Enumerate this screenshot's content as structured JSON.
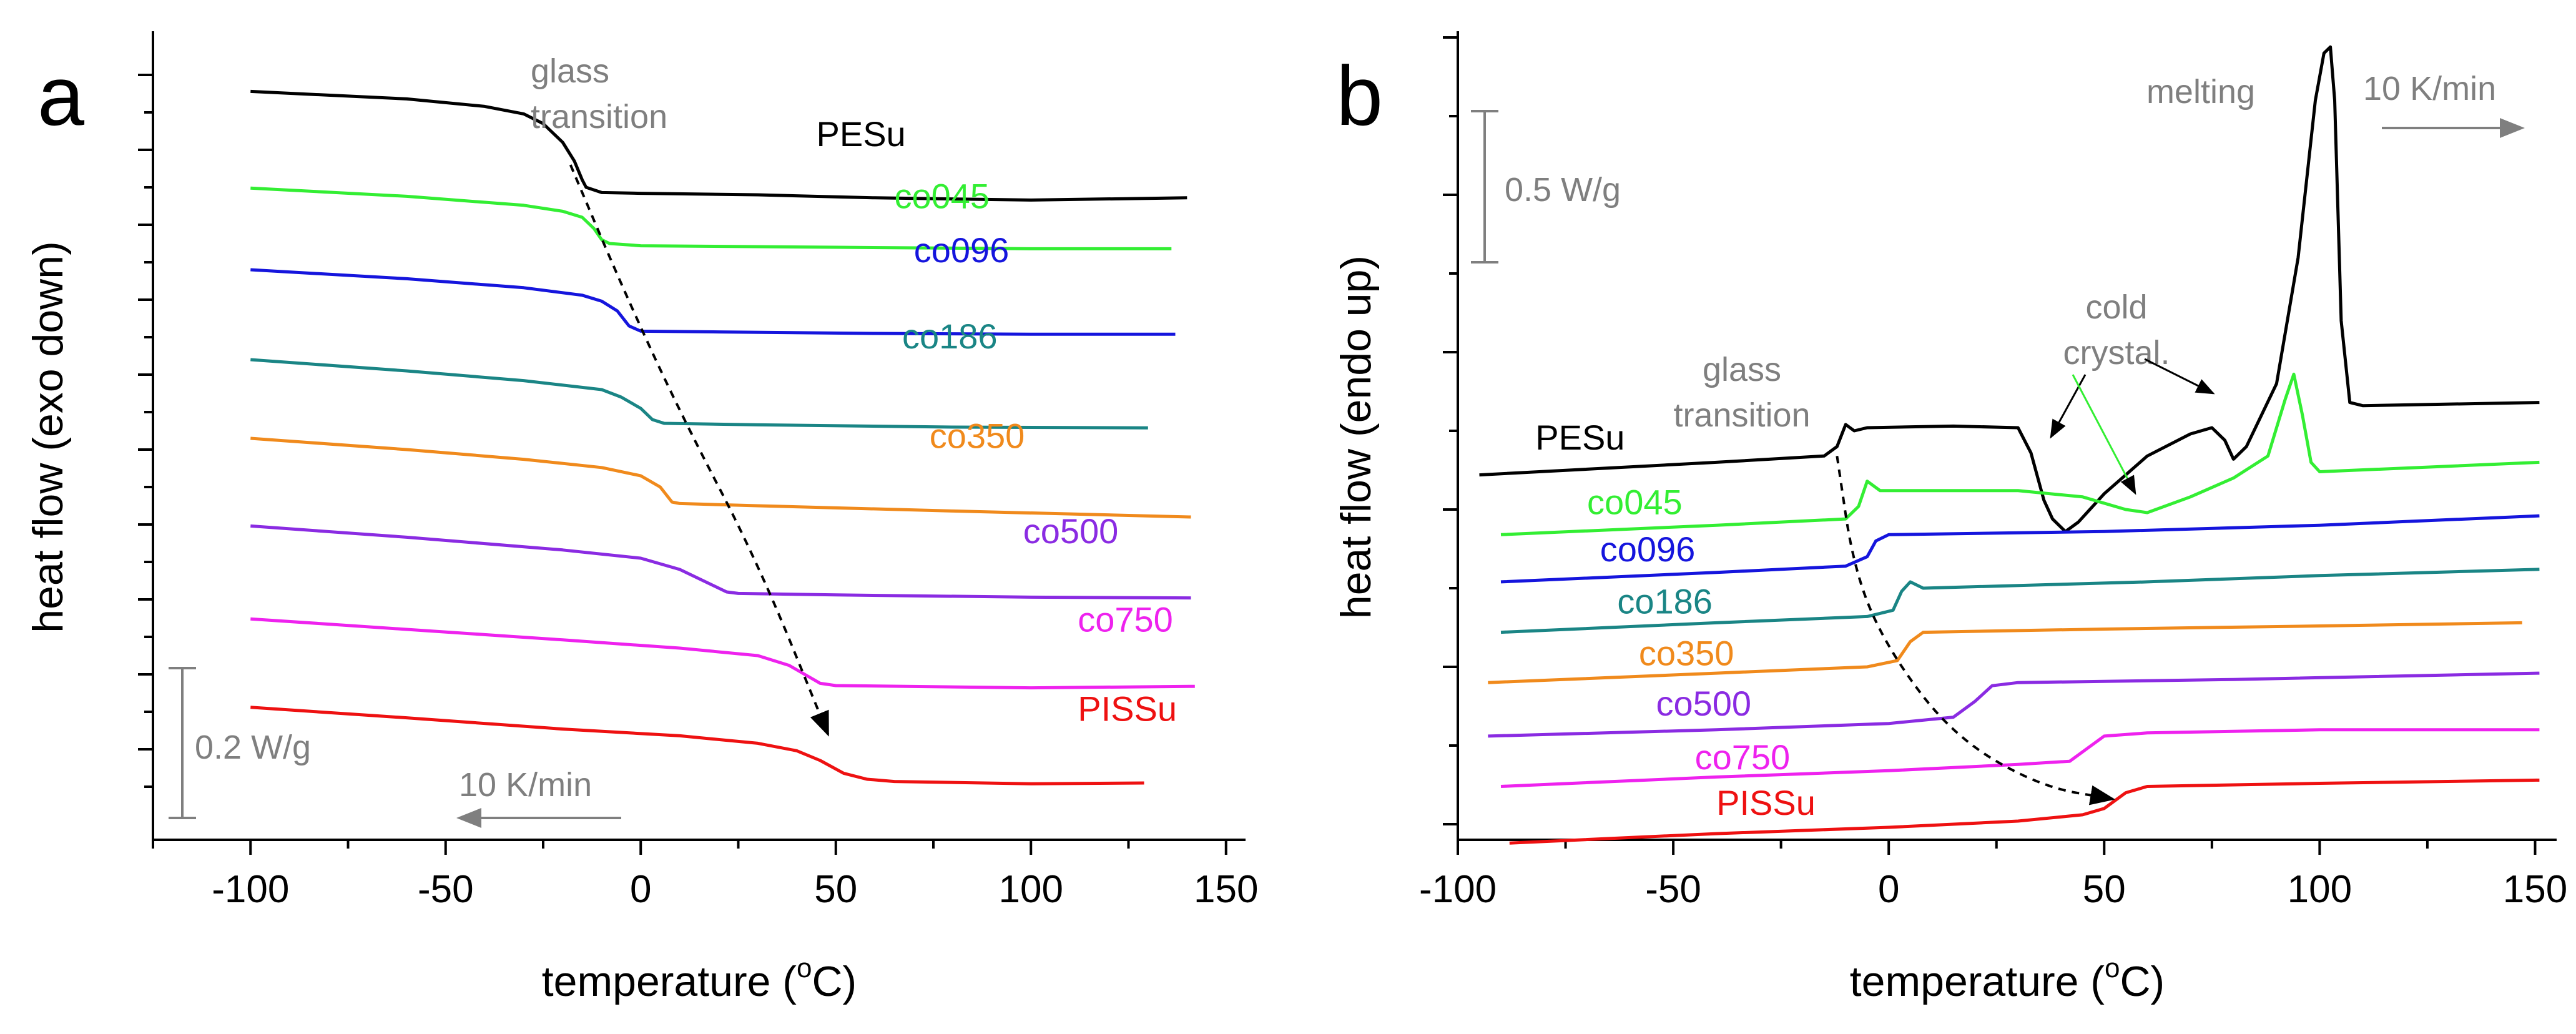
{
  "colors": {
    "PESu": "#000000",
    "co045": "#33ee33",
    "co096": "#1515dd",
    "co186": "#1a8585",
    "co350": "#f08a1c",
    "co500": "#8a2be2",
    "co750": "#ee22ee",
    "PISSu": "#ee1111",
    "annotation": "#7f7f7f"
  },
  "chart_data": [
    {
      "panel": "a",
      "type": "line",
      "xlabel": "temperature (°C)",
      "xlabel_main": "temperature (",
      "xlabel_unit": "C)",
      "xlabel_sup": "o",
      "ylabel": "heat flow (exo down)",
      "xlim": [
        -125,
        155
      ],
      "xticks": [
        -100,
        -50,
        0,
        50,
        100,
        150
      ],
      "xtick_labels": [
        "-100",
        "-50",
        "0",
        "50",
        "100",
        "150"
      ],
      "y_units": "W/g (arbitrary offset)",
      "ylim": [
        0,
        1.05
      ],
      "ytick_values": [
        0.1,
        0.2,
        0.3,
        0.4,
        0.5,
        0.6,
        0.7,
        0.8,
        0.9,
        1.0
      ],
      "series": [
        {
          "name": "PESu",
          "label": "PESu",
          "label_at": [
            45,
            0.905
          ],
          "points": [
            [
              -100,
              0.978
            ],
            [
              -60,
              0.968
            ],
            [
              -40,
              0.958
            ],
            [
              -30,
              0.948
            ],
            [
              -25,
              0.935
            ],
            [
              -20,
              0.91
            ],
            [
              -17,
              0.885
            ],
            [
              -15,
              0.86
            ],
            [
              -14,
              0.85
            ],
            [
              -10,
              0.843
            ],
            [
              0,
              0.842
            ],
            [
              30,
              0.84
            ],
            [
              60,
              0.836
            ],
            [
              100,
              0.833
            ],
            [
              140,
              0.836
            ]
          ]
        },
        {
          "name": "co045",
          "label": "co045",
          "label_at": [
            65,
            0.822
          ],
          "points": [
            [
              -100,
              0.849
            ],
            [
              -60,
              0.838
            ],
            [
              -30,
              0.826
            ],
            [
              -20,
              0.818
            ],
            [
              -15,
              0.81
            ],
            [
              -12,
              0.795
            ],
            [
              -10,
              0.78
            ],
            [
              -8,
              0.775
            ],
            [
              0,
              0.772
            ],
            [
              50,
              0.77
            ],
            [
              100,
              0.768
            ],
            [
              136,
              0.768
            ]
          ]
        },
        {
          "name": "co096",
          "label": "co096",
          "label_at": [
            70,
            0.75
          ],
          "points": [
            [
              -100,
              0.74
            ],
            [
              -60,
              0.728
            ],
            [
              -30,
              0.716
            ],
            [
              -15,
              0.706
            ],
            [
              -10,
              0.698
            ],
            [
              -6,
              0.685
            ],
            [
              -3,
              0.665
            ],
            [
              0,
              0.658
            ],
            [
              20,
              0.657
            ],
            [
              60,
              0.655
            ],
            [
              100,
              0.654
            ],
            [
              137,
              0.654
            ]
          ]
        },
        {
          "name": "co186",
          "label": "co186",
          "label_at": [
            67,
            0.635
          ],
          "points": [
            [
              -100,
              0.62
            ],
            [
              -60,
              0.605
            ],
            [
              -30,
              0.592
            ],
            [
              -10,
              0.58
            ],
            [
              -5,
              0.57
            ],
            [
              0,
              0.555
            ],
            [
              3,
              0.54
            ],
            [
              6,
              0.535
            ],
            [
              30,
              0.533
            ],
            [
              80,
              0.53
            ],
            [
              130,
              0.529
            ]
          ]
        },
        {
          "name": "co350",
          "label": "co350",
          "label_at": [
            74,
            0.502
          ],
          "points": [
            [
              -100,
              0.515
            ],
            [
              -60,
              0.5
            ],
            [
              -30,
              0.487
            ],
            [
              -10,
              0.476
            ],
            [
              0,
              0.465
            ],
            [
              5,
              0.45
            ],
            [
              8,
              0.43
            ],
            [
              10,
              0.428
            ],
            [
              30,
              0.425
            ],
            [
              80,
              0.418
            ],
            [
              141,
              0.41
            ]
          ]
        },
        {
          "name": "co500",
          "label": "co500",
          "label_at": [
            98,
            0.375
          ],
          "points": [
            [
              -100,
              0.398
            ],
            [
              -60,
              0.383
            ],
            [
              -20,
              0.366
            ],
            [
              0,
              0.355
            ],
            [
              10,
              0.34
            ],
            [
              18,
              0.32
            ],
            [
              22,
              0.31
            ],
            [
              25,
              0.308
            ],
            [
              50,
              0.306
            ],
            [
              100,
              0.303
            ],
            [
              141,
              0.302
            ]
          ]
        },
        {
          "name": "co750",
          "label": "co750",
          "label_at": [
            112,
            0.257
          ],
          "points": [
            [
              -100,
              0.274
            ],
            [
              -60,
              0.26
            ],
            [
              -20,
              0.246
            ],
            [
              10,
              0.235
            ],
            [
              30,
              0.225
            ],
            [
              38,
              0.212
            ],
            [
              42,
              0.2
            ],
            [
              46,
              0.188
            ],
            [
              50,
              0.185
            ],
            [
              100,
              0.182
            ],
            [
              142,
              0.184
            ]
          ]
        },
        {
          "name": "PISSu",
          "label": "PISSu",
          "label_at": [
            112,
            0.138
          ],
          "points": [
            [
              -100,
              0.156
            ],
            [
              -60,
              0.142
            ],
            [
              -20,
              0.127
            ],
            [
              10,
              0.118
            ],
            [
              30,
              0.108
            ],
            [
              40,
              0.098
            ],
            [
              46,
              0.085
            ],
            [
              52,
              0.068
            ],
            [
              58,
              0.06
            ],
            [
              65,
              0.057
            ],
            [
              100,
              0.054
            ],
            [
              129,
              0.055
            ]
          ]
        }
      ],
      "arrow_path": [
        [
          -18,
          0.88
        ],
        [
          -5,
          0.72
        ],
        [
          10,
          0.55
        ],
        [
          30,
          0.35
        ],
        [
          48,
          0.12
        ]
      ],
      "annotations": {
        "glass_line1": "glass",
        "glass_line2": "transition",
        "scale_bar": "0.2 W/g",
        "rate": "10 K/min"
      }
    },
    {
      "panel": "b",
      "type": "line",
      "xlabel": "temperature (°C)",
      "xlabel_main": "temperature (",
      "xlabel_unit": "C)",
      "xlabel_sup": "o",
      "ylabel": "heat flow (endo up)",
      "xlim": [
        -100,
        155
      ],
      "xticks": [
        -100,
        -50,
        0,
        50,
        100,
        150
      ],
      "xtick_labels": [
        "-100",
        "-50",
        "0",
        "50",
        "100",
        "150"
      ],
      "y_units": "W/g (arbitrary offset)",
      "ylim": [
        0,
        2.5
      ],
      "ytick_values": [
        0.0,
        0.5,
        1.0,
        1.5,
        2.0,
        2.5
      ],
      "series": [
        {
          "name": "PESu",
          "label": "PESu",
          "label_at": [
            -82,
            1.19
          ],
          "points": [
            [
              -95,
              1.11
            ],
            [
              -40,
              1.15
            ],
            [
              -15,
              1.17
            ],
            [
              -12,
              1.2
            ],
            [
              -10,
              1.27
            ],
            [
              -8,
              1.25
            ],
            [
              -5,
              1.26
            ],
            [
              15,
              1.265
            ],
            [
              30,
              1.26
            ],
            [
              33,
              1.18
            ],
            [
              36,
              1.03
            ],
            [
              38,
              0.97
            ],
            [
              41,
              0.93
            ],
            [
              44,
              0.96
            ],
            [
              50,
              1.05
            ],
            [
              60,
              1.17
            ],
            [
              70,
              1.24
            ],
            [
              75,
              1.26
            ],
            [
              78,
              1.22
            ],
            [
              80,
              1.16
            ],
            [
              83,
              1.2
            ],
            [
              90,
              1.4
            ],
            [
              95,
              1.8
            ],
            [
              99,
              2.3
            ],
            [
              101,
              2.45
            ],
            [
              102.5,
              2.47
            ],
            [
              103.5,
              2.3
            ],
            [
              105,
              1.6
            ],
            [
              107,
              1.34
            ],
            [
              110,
              1.33
            ],
            [
              151,
              1.34
            ]
          ]
        },
        {
          "name": "co045",
          "label": "co045",
          "label_at": [
            -70,
            0.985
          ],
          "points": [
            [
              -90,
              0.92
            ],
            [
              -40,
              0.95
            ],
            [
              -10,
              0.97
            ],
            [
              -7,
              1.01
            ],
            [
              -5,
              1.09
            ],
            [
              -2,
              1.06
            ],
            [
              30,
              1.06
            ],
            [
              45,
              1.04
            ],
            [
              55,
              1.0
            ],
            [
              60,
              0.99
            ],
            [
              70,
              1.04
            ],
            [
              80,
              1.1
            ],
            [
              88,
              1.17
            ],
            [
              92,
              1.35
            ],
            [
              94,
              1.43
            ],
            [
              96,
              1.3
            ],
            [
              98,
              1.15
            ],
            [
              100,
              1.12
            ],
            [
              151,
              1.15
            ]
          ]
        },
        {
          "name": "co096",
          "label": "co096",
          "label_at": [
            -67,
            0.835
          ],
          "points": [
            [
              -90,
              0.77
            ],
            [
              -40,
              0.8
            ],
            [
              -10,
              0.82
            ],
            [
              -5,
              0.85
            ],
            [
              -3,
              0.9
            ],
            [
              0,
              0.92
            ],
            [
              50,
              0.93
            ],
            [
              100,
              0.95
            ],
            [
              151,
              0.98
            ]
          ]
        },
        {
          "name": "co186",
          "label": "co186",
          "label_at": [
            -63,
            0.67
          ],
          "points": [
            [
              -90,
              0.61
            ],
            [
              -40,
              0.64
            ],
            [
              -5,
              0.66
            ],
            [
              1,
              0.68
            ],
            [
              3,
              0.74
            ],
            [
              5,
              0.77
            ],
            [
              8,
              0.75
            ],
            [
              60,
              0.77
            ],
            [
              100,
              0.79
            ],
            [
              151,
              0.81
            ]
          ]
        },
        {
          "name": "co350",
          "label": "co350",
          "label_at": [
            -58,
            0.505
          ],
          "points": [
            [
              -93,
              0.45
            ],
            [
              -40,
              0.48
            ],
            [
              -5,
              0.5
            ],
            [
              2,
              0.52
            ],
            [
              5,
              0.58
            ],
            [
              8,
              0.61
            ],
            [
              50,
              0.62
            ],
            [
              100,
              0.63
            ],
            [
              147,
              0.64
            ]
          ]
        },
        {
          "name": "co500",
          "label": "co500",
          "label_at": [
            -54,
            0.345
          ],
          "points": [
            [
              -93,
              0.28
            ],
            [
              -40,
              0.3
            ],
            [
              0,
              0.32
            ],
            [
              15,
              0.34
            ],
            [
              20,
              0.39
            ],
            [
              24,
              0.44
            ],
            [
              30,
              0.45
            ],
            [
              80,
              0.46
            ],
            [
              151,
              0.48
            ]
          ]
        },
        {
          "name": "co750",
          "label": "co750",
          "label_at": [
            -45,
            0.175
          ],
          "points": [
            [
              -90,
              0.12
            ],
            [
              -40,
              0.15
            ],
            [
              0,
              0.17
            ],
            [
              30,
              0.19
            ],
            [
              42,
              0.2
            ],
            [
              46,
              0.24
            ],
            [
              50,
              0.28
            ],
            [
              60,
              0.29
            ],
            [
              100,
              0.3
            ],
            [
              151,
              0.3
            ]
          ]
        },
        {
          "name": "PISSu",
          "label": "PISSu",
          "label_at": [
            -40,
            0.03
          ],
          "points": [
            [
              -88,
              -0.06
            ],
            [
              -40,
              -0.03
            ],
            [
              0,
              -0.01
            ],
            [
              30,
              0.01
            ],
            [
              45,
              0.03
            ],
            [
              50,
              0.05
            ],
            [
              55,
              0.1
            ],
            [
              60,
              0.12
            ],
            [
              100,
              0.13
            ],
            [
              151,
              0.14
            ]
          ]
        }
      ],
      "arrow_path": [
        [
          -12,
          1.17
        ],
        [
          -8,
          0.8
        ],
        [
          0,
          0.55
        ],
        [
          15,
          0.28
        ],
        [
          35,
          0.12
        ],
        [
          52,
          0.08
        ]
      ],
      "annotations": {
        "glass_line1": "glass",
        "glass_line2": "transition",
        "cold_line1": "cold",
        "cold_line2": "crystal.",
        "melting": "melting",
        "scale_bar": "0.5 W/g",
        "rate": "10 K/min"
      }
    }
  ]
}
